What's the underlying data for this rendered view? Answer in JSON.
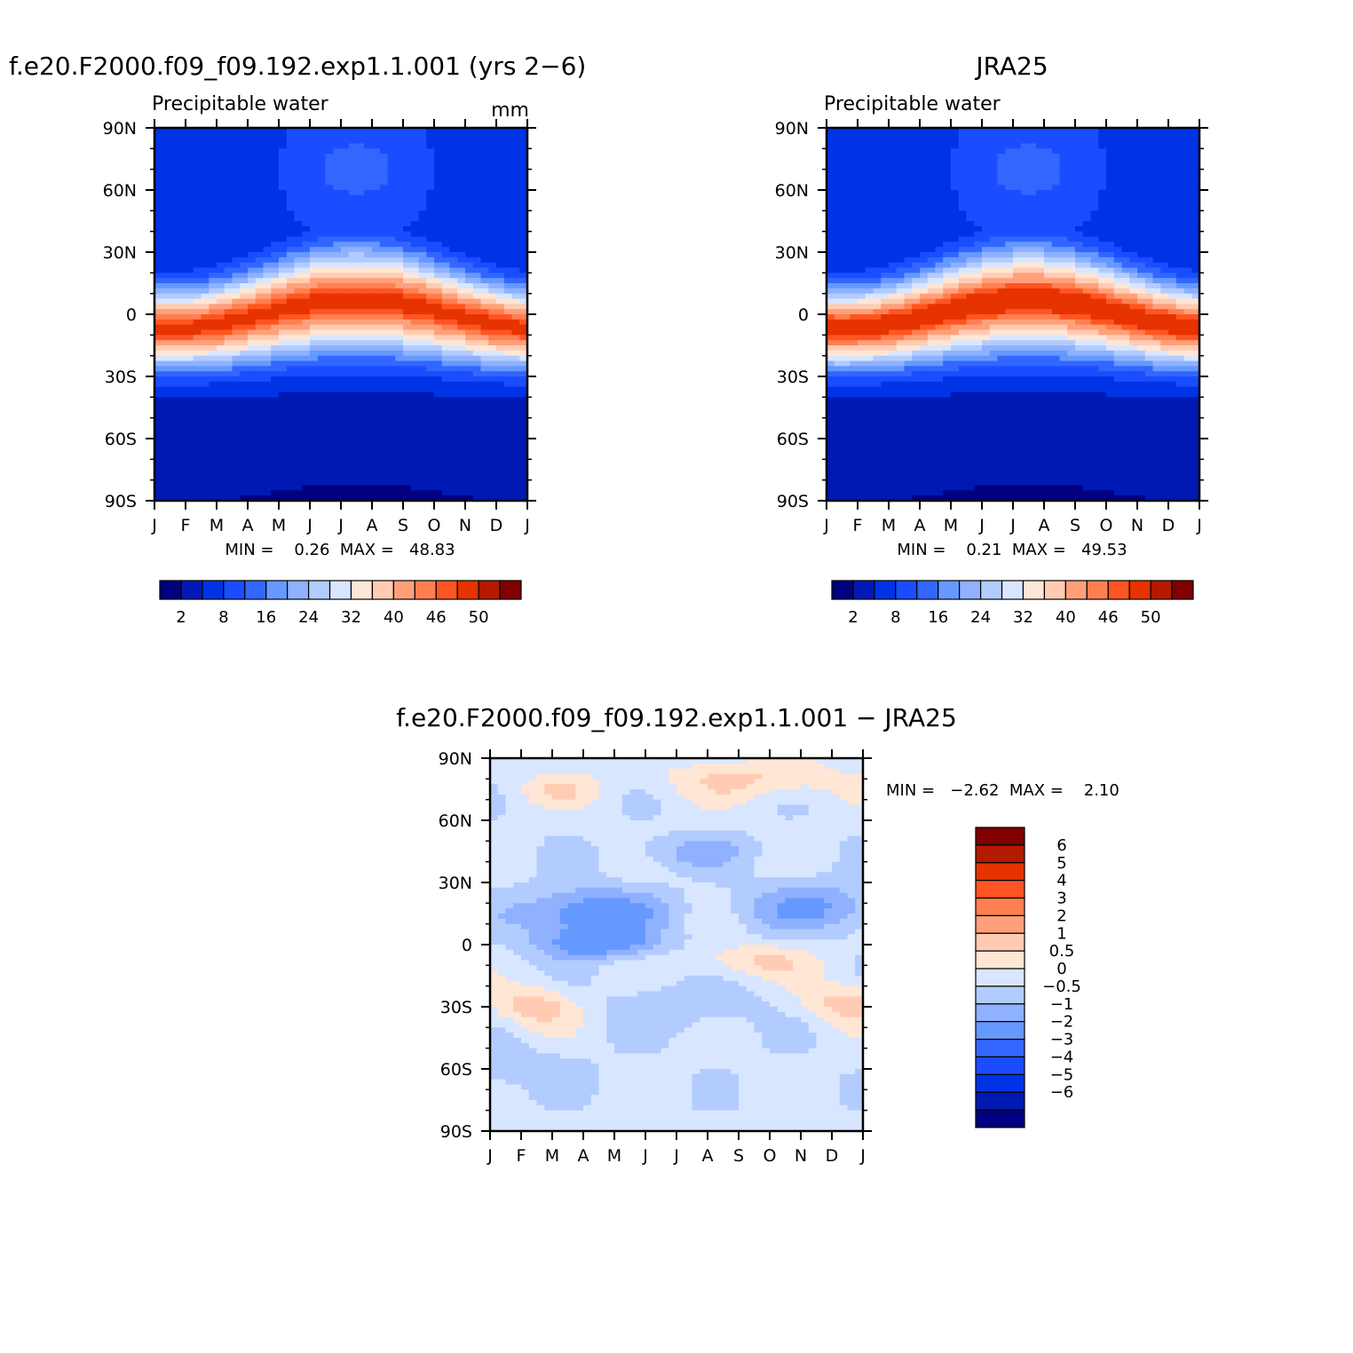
{
  "figure": {
    "colors": {
      "abs_palette": [
        "#000080",
        "#0019b3",
        "#0033e6",
        "#1a4dff",
        "#3366ff",
        "#6699ff",
        "#8fb1ff",
        "#b3ccff",
        "#d9e6ff",
        "#ffe6d5",
        "#ffccb3",
        "#ffa07a",
        "#ff7f50",
        "#ff5522",
        "#e63300",
        "#b31a00",
        "#800000"
      ],
      "diff_palette": [
        "#000080",
        "#0019b3",
        "#0033e6",
        "#1a4dff",
        "#3366ff",
        "#6699ff",
        "#8fb1ff",
        "#b3ccff",
        "#d9e6ff",
        "#ffe6d5",
        "#ffccb3",
        "#ffa07a",
        "#ff7f50",
        "#ff5522",
        "#e63300",
        "#b31a00",
        "#800000"
      ]
    }
  },
  "chart_data": [
    {
      "id": "model",
      "type": "heatmap",
      "title": "f.e20.F2000.f09_f09.192.exp1.1.001 (yrs 2-6)",
      "subtitle": "Precipitable water",
      "units": "mm",
      "x_ticks": [
        "J",
        "F",
        "M",
        "A",
        "M",
        "J",
        "J",
        "A",
        "S",
        "O",
        "N",
        "D",
        "J"
      ],
      "y_ticks": [
        "90N",
        "60N",
        "30N",
        "0",
        "30S",
        "60S",
        "90S"
      ],
      "y_range": [
        -90,
        90
      ],
      "stats_text": "MIN =    0.26  MAX =   48.83",
      "min": 0.26,
      "max": 48.83,
      "colorbar": {
        "levels": [
          2,
          4,
          8,
          12,
          16,
          20,
          24,
          28,
          32,
          36,
          40,
          44,
          46,
          48,
          50
        ],
        "tick_labels": [
          "2",
          "8",
          "16",
          "24",
          "32",
          "40",
          "46",
          "50"
        ]
      }
    },
    {
      "id": "obs",
      "type": "heatmap",
      "title": "JRA25",
      "subtitle": "Precipitable water",
      "units": "",
      "x_ticks": [
        "J",
        "F",
        "M",
        "A",
        "M",
        "J",
        "J",
        "A",
        "S",
        "O",
        "N",
        "D",
        "J"
      ],
      "y_ticks": [
        "90N",
        "60N",
        "30N",
        "0",
        "30S",
        "60S",
        "90S"
      ],
      "y_range": [
        -90,
        90
      ],
      "stats_text": "MIN =    0.21  MAX =   49.53",
      "min": 0.21,
      "max": 49.53,
      "colorbar": {
        "levels": [
          2,
          4,
          8,
          12,
          16,
          20,
          24,
          28,
          32,
          36,
          40,
          44,
          46,
          48,
          50
        ],
        "tick_labels": [
          "2",
          "8",
          "16",
          "24",
          "32",
          "40",
          "46",
          "50"
        ]
      }
    },
    {
      "id": "diff",
      "type": "heatmap",
      "title": "f.e20.F2000.f09_f09.192.exp1.1.001 - JRA25",
      "x_ticks": [
        "J",
        "F",
        "M",
        "A",
        "M",
        "J",
        "J",
        "A",
        "S",
        "O",
        "N",
        "D",
        "J"
      ],
      "y_ticks": [
        "90N",
        "60N",
        "30N",
        "0",
        "30S",
        "60S",
        "90S"
      ],
      "y_range": [
        -90,
        90
      ],
      "stats_text": "MIN =   -2.62  MAX =    2.10",
      "min": -2.62,
      "max": 2.1,
      "colorbar": {
        "levels": [
          6,
          5,
          4,
          3,
          2,
          1,
          0.5,
          0,
          -0.5,
          -1,
          -2,
          -3,
          -4,
          -5,
          -6
        ],
        "tick_labels": [
          "6",
          "5",
          "4",
          "3",
          "2",
          "1",
          "0.5",
          "0",
          "-0.5",
          "-1",
          "-2",
          "-3",
          "-4",
          "-5",
          "-6"
        ]
      }
    }
  ]
}
